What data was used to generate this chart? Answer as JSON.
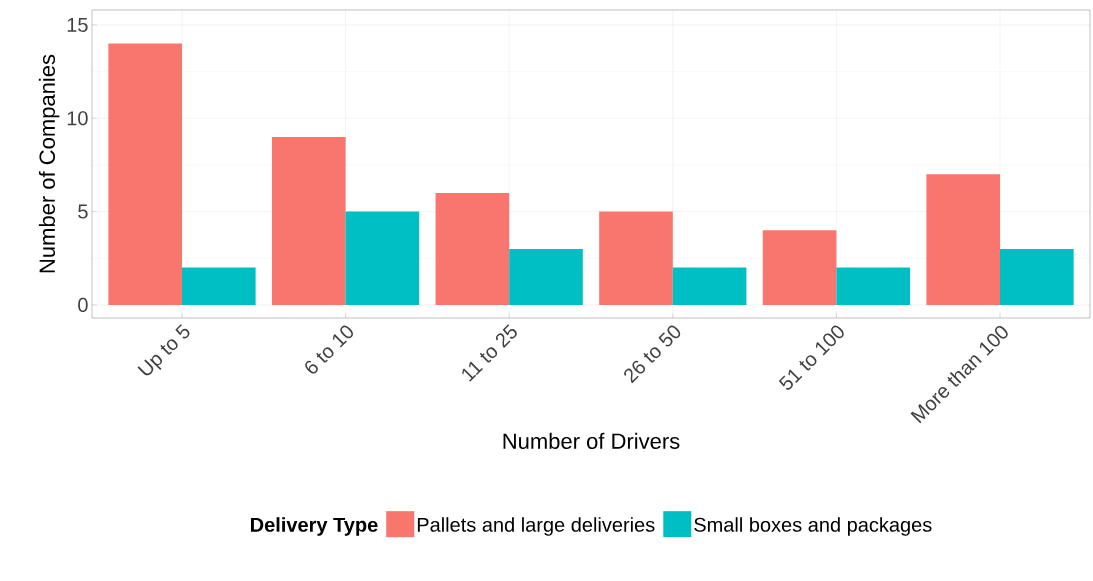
{
  "chart_data": {
    "type": "bar",
    "xlabel": "Number of Drivers",
    "ylabel": "Number of Companies",
    "legend_title": "Delivery Type",
    "categories": [
      "Up to 5",
      "6 to 10",
      "11 to 25",
      "26 to 50",
      "51 to 100",
      "More than 100"
    ],
    "series": [
      {
        "name": "Pallets and large deliveries",
        "color": "#f8766d",
        "values": [
          14,
          9,
          6,
          5,
          4,
          7
        ]
      },
      {
        "name": "Small boxes and packages",
        "color": "#00bfc4",
        "values": [
          2,
          5,
          3,
          2,
          2,
          3
        ]
      }
    ],
    "ylim": [
      -0.7,
      15.8
    ],
    "yticks": [
      0,
      5,
      10,
      15
    ],
    "grid": true,
    "legend": "bottom"
  }
}
